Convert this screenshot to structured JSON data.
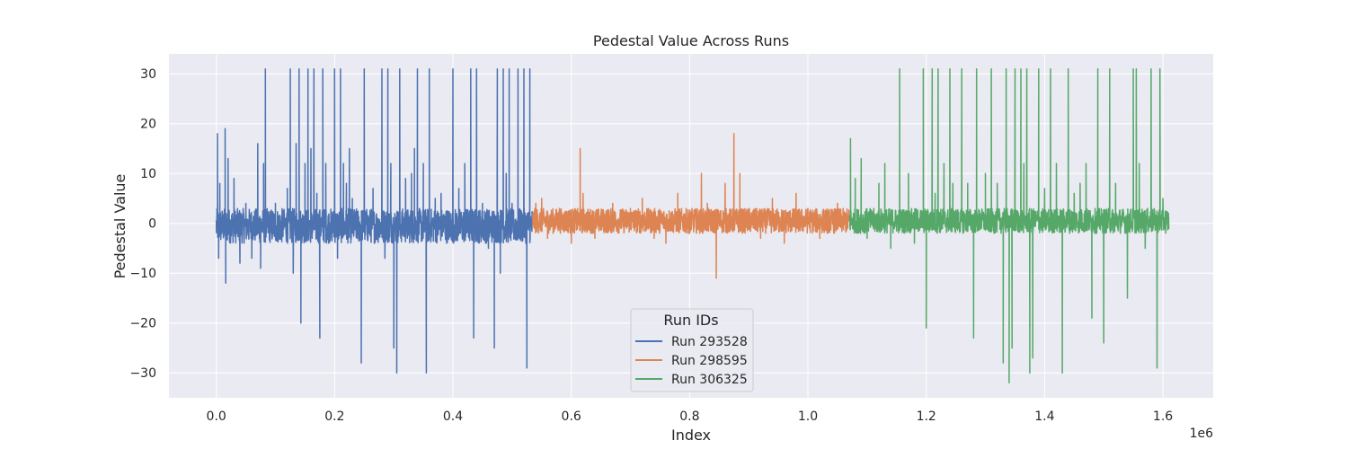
{
  "chart_data": {
    "type": "line",
    "title": "Pedestal Value Across Runs",
    "xlabel": "Index",
    "ylabel": "Pedestal Value",
    "x_offset_label": "1e6",
    "xlim": [
      -0.08,
      1.685
    ],
    "ylim": [
      -35,
      34
    ],
    "x_ticks": [
      0.0,
      0.2,
      0.4,
      0.6,
      0.8,
      1.0,
      1.2,
      1.4,
      1.6
    ],
    "x_tick_labels": [
      "0.0",
      "0.2",
      "0.4",
      "0.6",
      "0.8",
      "1.0",
      "1.2",
      "1.4",
      "1.6"
    ],
    "y_ticks": [
      -30,
      -20,
      -10,
      0,
      10,
      20,
      30
    ],
    "y_tick_labels": [
      "−30",
      "−20",
      "−10",
      "0",
      "10",
      "20",
      "30"
    ],
    "grid": true,
    "background": "#EAEAF2",
    "legend": {
      "title": "Run IDs",
      "placement": "lower-center"
    },
    "series": [
      {
        "name": "Run 293528",
        "color": "#4C72B0",
        "x_range": [
          0.0,
          0.535
        ],
        "band": [
          -4,
          3
        ],
        "spikes": [
          [
            0.002,
            18
          ],
          [
            0.004,
            -7
          ],
          [
            0.006,
            8
          ],
          [
            0.015,
            19
          ],
          [
            0.016,
            -12
          ],
          [
            0.02,
            13
          ],
          [
            0.03,
            9
          ],
          [
            0.04,
            -8
          ],
          [
            0.05,
            4
          ],
          [
            0.06,
            -7
          ],
          [
            0.07,
            16
          ],
          [
            0.075,
            -9
          ],
          [
            0.08,
            12
          ],
          [
            0.083,
            31
          ],
          [
            0.1,
            4
          ],
          [
            0.12,
            7
          ],
          [
            0.125,
            31
          ],
          [
            0.13,
            -10
          ],
          [
            0.135,
            16
          ],
          [
            0.14,
            31
          ],
          [
            0.143,
            -20
          ],
          [
            0.15,
            12
          ],
          [
            0.155,
            31
          ],
          [
            0.16,
            15
          ],
          [
            0.165,
            31
          ],
          [
            0.17,
            6
          ],
          [
            0.175,
            -23
          ],
          [
            0.18,
            31
          ],
          [
            0.185,
            12
          ],
          [
            0.2,
            31
          ],
          [
            0.205,
            -7
          ],
          [
            0.21,
            31
          ],
          [
            0.215,
            12
          ],
          [
            0.22,
            8
          ],
          [
            0.225,
            15
          ],
          [
            0.23,
            5
          ],
          [
            0.245,
            -28
          ],
          [
            0.25,
            31
          ],
          [
            0.265,
            7
          ],
          [
            0.28,
            31
          ],
          [
            0.285,
            -7
          ],
          [
            0.29,
            31
          ],
          [
            0.295,
            12
          ],
          [
            0.3,
            -25
          ],
          [
            0.305,
            -30
          ],
          [
            0.31,
            31
          ],
          [
            0.32,
            9
          ],
          [
            0.33,
            10
          ],
          [
            0.335,
            15
          ],
          [
            0.34,
            31
          ],
          [
            0.35,
            12
          ],
          [
            0.355,
            -30
          ],
          [
            0.36,
            31
          ],
          [
            0.37,
            5
          ],
          [
            0.38,
            6
          ],
          [
            0.4,
            31
          ],
          [
            0.41,
            7
          ],
          [
            0.42,
            12
          ],
          [
            0.43,
            31
          ],
          [
            0.435,
            -23
          ],
          [
            0.44,
            31
          ],
          [
            0.45,
            4
          ],
          [
            0.46,
            -5
          ],
          [
            0.47,
            -25
          ],
          [
            0.475,
            31
          ],
          [
            0.48,
            -10
          ],
          [
            0.485,
            31
          ],
          [
            0.49,
            10
          ],
          [
            0.495,
            31
          ],
          [
            0.5,
            4
          ],
          [
            0.51,
            31
          ],
          [
            0.52,
            31
          ],
          [
            0.525,
            -29
          ],
          [
            0.53,
            31
          ]
        ]
      },
      {
        "name": "Run 298595",
        "color": "#DD8452",
        "x_range": [
          0.535,
          1.07
        ],
        "band": [
          -2,
          3
        ],
        "spikes": [
          [
            0.54,
            4
          ],
          [
            0.55,
            5
          ],
          [
            0.56,
            -3
          ],
          [
            0.58,
            3
          ],
          [
            0.6,
            -4
          ],
          [
            0.615,
            15
          ],
          [
            0.62,
            6
          ],
          [
            0.64,
            -3
          ],
          [
            0.67,
            4
          ],
          [
            0.7,
            3
          ],
          [
            0.72,
            5
          ],
          [
            0.74,
            -3
          ],
          [
            0.76,
            -4
          ],
          [
            0.78,
            6
          ],
          [
            0.8,
            -2
          ],
          [
            0.82,
            10
          ],
          [
            0.83,
            4
          ],
          [
            0.845,
            -11
          ],
          [
            0.86,
            8
          ],
          [
            0.875,
            18
          ],
          [
            0.885,
            10
          ],
          [
            0.9,
            3
          ],
          [
            0.92,
            -3
          ],
          [
            0.94,
            5
          ],
          [
            0.96,
            -4
          ],
          [
            0.98,
            6
          ],
          [
            1.0,
            3
          ],
          [
            1.02,
            -3
          ],
          [
            1.05,
            4
          ]
        ]
      },
      {
        "name": "Run 306325",
        "color": "#55A868",
        "x_range": [
          1.07,
          1.61
        ],
        "band": [
          -2,
          3
        ],
        "spikes": [
          [
            1.072,
            17
          ],
          [
            1.08,
            9
          ],
          [
            1.09,
            13
          ],
          [
            1.1,
            -3
          ],
          [
            1.12,
            8
          ],
          [
            1.13,
            12
          ],
          [
            1.14,
            -5
          ],
          [
            1.155,
            31
          ],
          [
            1.17,
            10
          ],
          [
            1.18,
            -4
          ],
          [
            1.195,
            31
          ],
          [
            1.2,
            -21
          ],
          [
            1.21,
            31
          ],
          [
            1.215,
            6
          ],
          [
            1.22,
            31
          ],
          [
            1.23,
            12
          ],
          [
            1.24,
            31
          ],
          [
            1.245,
            8
          ],
          [
            1.26,
            31
          ],
          [
            1.27,
            8
          ],
          [
            1.28,
            -23
          ],
          [
            1.285,
            31
          ],
          [
            1.3,
            10
          ],
          [
            1.31,
            31
          ],
          [
            1.32,
            8
          ],
          [
            1.33,
            -28
          ],
          [
            1.335,
            31
          ],
          [
            1.34,
            -32
          ],
          [
            1.345,
            -25
          ],
          [
            1.35,
            31
          ],
          [
            1.36,
            31
          ],
          [
            1.365,
            12
          ],
          [
            1.37,
            31
          ],
          [
            1.375,
            -30
          ],
          [
            1.38,
            -27
          ],
          [
            1.39,
            31
          ],
          [
            1.4,
            7
          ],
          [
            1.41,
            31
          ],
          [
            1.42,
            12
          ],
          [
            1.43,
            -30
          ],
          [
            1.44,
            31
          ],
          [
            1.45,
            6
          ],
          [
            1.46,
            8
          ],
          [
            1.47,
            12
          ],
          [
            1.48,
            -19
          ],
          [
            1.49,
            31
          ],
          [
            1.5,
            -24
          ],
          [
            1.51,
            31
          ],
          [
            1.52,
            8
          ],
          [
            1.54,
            -15
          ],
          [
            1.55,
            31
          ],
          [
            1.555,
            31
          ],
          [
            1.56,
            12
          ],
          [
            1.57,
            -5
          ],
          [
            1.58,
            31
          ],
          [
            1.59,
            -29
          ],
          [
            1.595,
            31
          ],
          [
            1.6,
            5
          ],
          [
            1.605,
            2
          ]
        ]
      }
    ]
  }
}
